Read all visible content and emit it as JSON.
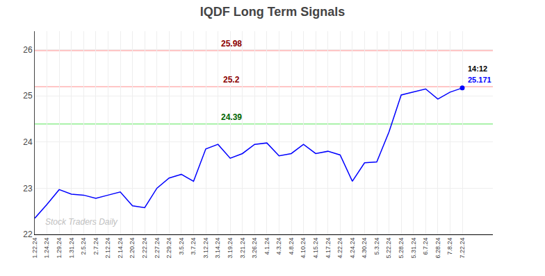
{
  "chart_data": {
    "type": "line",
    "title": "IQDF Long Term Signals",
    "categories": [
      "1.22.24",
      "1.24.24",
      "1.29.24",
      "1.31.24",
      "2.5.24",
      "2.7.24",
      "2.12.24",
      "2.14.24",
      "2.20.24",
      "2.22.24",
      "2.27.24",
      "2.29.24",
      "3.5.24",
      "3.7.24",
      "3.12.24",
      "3.14.24",
      "3.19.24",
      "3.21.24",
      "3.26.24",
      "4.1.24",
      "4.3.24",
      "4.8.24",
      "4.10.24",
      "4.15.24",
      "4.17.24",
      "4.22.24",
      "4.24.24",
      "4.30.24",
      "5.3.24",
      "5.22.24",
      "5.28.24",
      "5.31.24",
      "6.7.24",
      "6.28.24",
      "7.8.24",
      "7.22.24"
    ],
    "values": [
      22.35,
      22.65,
      22.97,
      22.87,
      22.85,
      22.78,
      22.85,
      22.92,
      22.62,
      22.58,
      23.0,
      23.22,
      23.3,
      23.15,
      23.85,
      23.95,
      23.65,
      23.75,
      23.95,
      23.98,
      23.7,
      23.75,
      23.95,
      23.75,
      23.8,
      23.72,
      23.15,
      23.55,
      23.57,
      24.22,
      25.02,
      25.08,
      25.15,
      24.93,
      25.08,
      25.171
    ],
    "color": "blue",
    "ylim": [
      22,
      26.4
    ],
    "yticks": [
      22,
      23,
      24,
      25,
      26
    ],
    "grid": true,
    "reference_lines": [
      {
        "value": 25.98,
        "label": "25.98",
        "color": "#ffb3b3",
        "label_color": "darkred"
      },
      {
        "value": 25.2,
        "label": "25.2",
        "color": "#ffb3b3",
        "label_color": "darkred"
      },
      {
        "value": 24.39,
        "label": "24.39",
        "color": "#90ee90",
        "label_color": "darkgreen"
      }
    ],
    "watermark": "Stock Traders Daily",
    "annotations": [
      {
        "text": "14:12",
        "color": "black"
      },
      {
        "text": "25.171",
        "color": "blue"
      }
    ]
  }
}
